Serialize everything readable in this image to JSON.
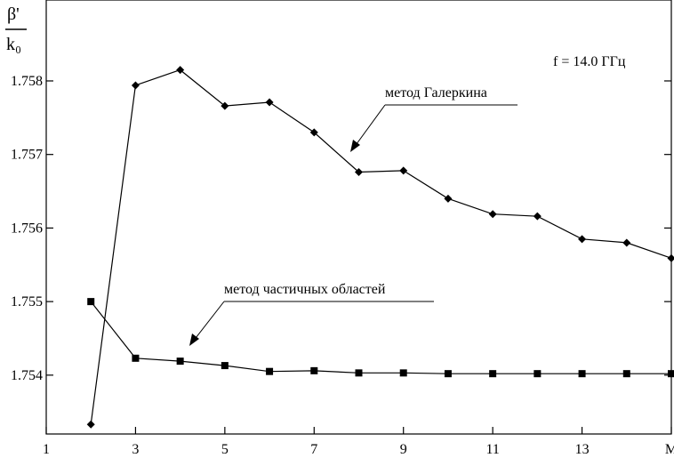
{
  "chart_data": {
    "type": "line",
    "ylabel_numerator": "β'",
    "ylabel_denominator": "k₀",
    "annotation": "f = 14.0 ГГц",
    "x_last_tick_label": "M",
    "xlim": [
      1,
      15
    ],
    "ylim": [
      1.7532,
      1.7591
    ],
    "x_ticks": [
      1,
      3,
      5,
      7,
      9,
      11,
      13,
      15
    ],
    "x_tick_labels": [
      "1",
      "3",
      "5",
      "7",
      "9",
      "11",
      "13",
      "M"
    ],
    "y_ticks": [
      1.754,
      1.755,
      1.756,
      1.757,
      1.758
    ],
    "y_tick_labels": [
      "1.754",
      "1.755",
      "1.756",
      "1.757",
      "1.758"
    ],
    "grid": false,
    "series": [
      {
        "name": "метод Галеркина",
        "marker": "diamond",
        "color": "#000000",
        "x": [
          2,
          3,
          4,
          5,
          6,
          7,
          8,
          9,
          10,
          11,
          12,
          13,
          14,
          15
        ],
        "y": [
          1.75333,
          1.75794,
          1.75815,
          1.75766,
          1.75771,
          1.7573,
          1.75676,
          1.75678,
          1.7564,
          1.75619,
          1.75616,
          1.75585,
          1.7558,
          1.75559
        ]
      },
      {
        "name": "метод частичных областей",
        "marker": "square",
        "color": "#000000",
        "x": [
          2,
          3,
          4,
          5,
          6,
          7,
          8,
          9,
          10,
          11,
          12,
          13,
          14,
          15
        ],
        "y": [
          1.755,
          1.75423,
          1.75419,
          1.75413,
          1.75405,
          1.75406,
          1.75403,
          1.75403,
          1.75402,
          1.75402,
          1.75402,
          1.75402,
          1.75402,
          1.75402
        ]
      }
    ]
  }
}
